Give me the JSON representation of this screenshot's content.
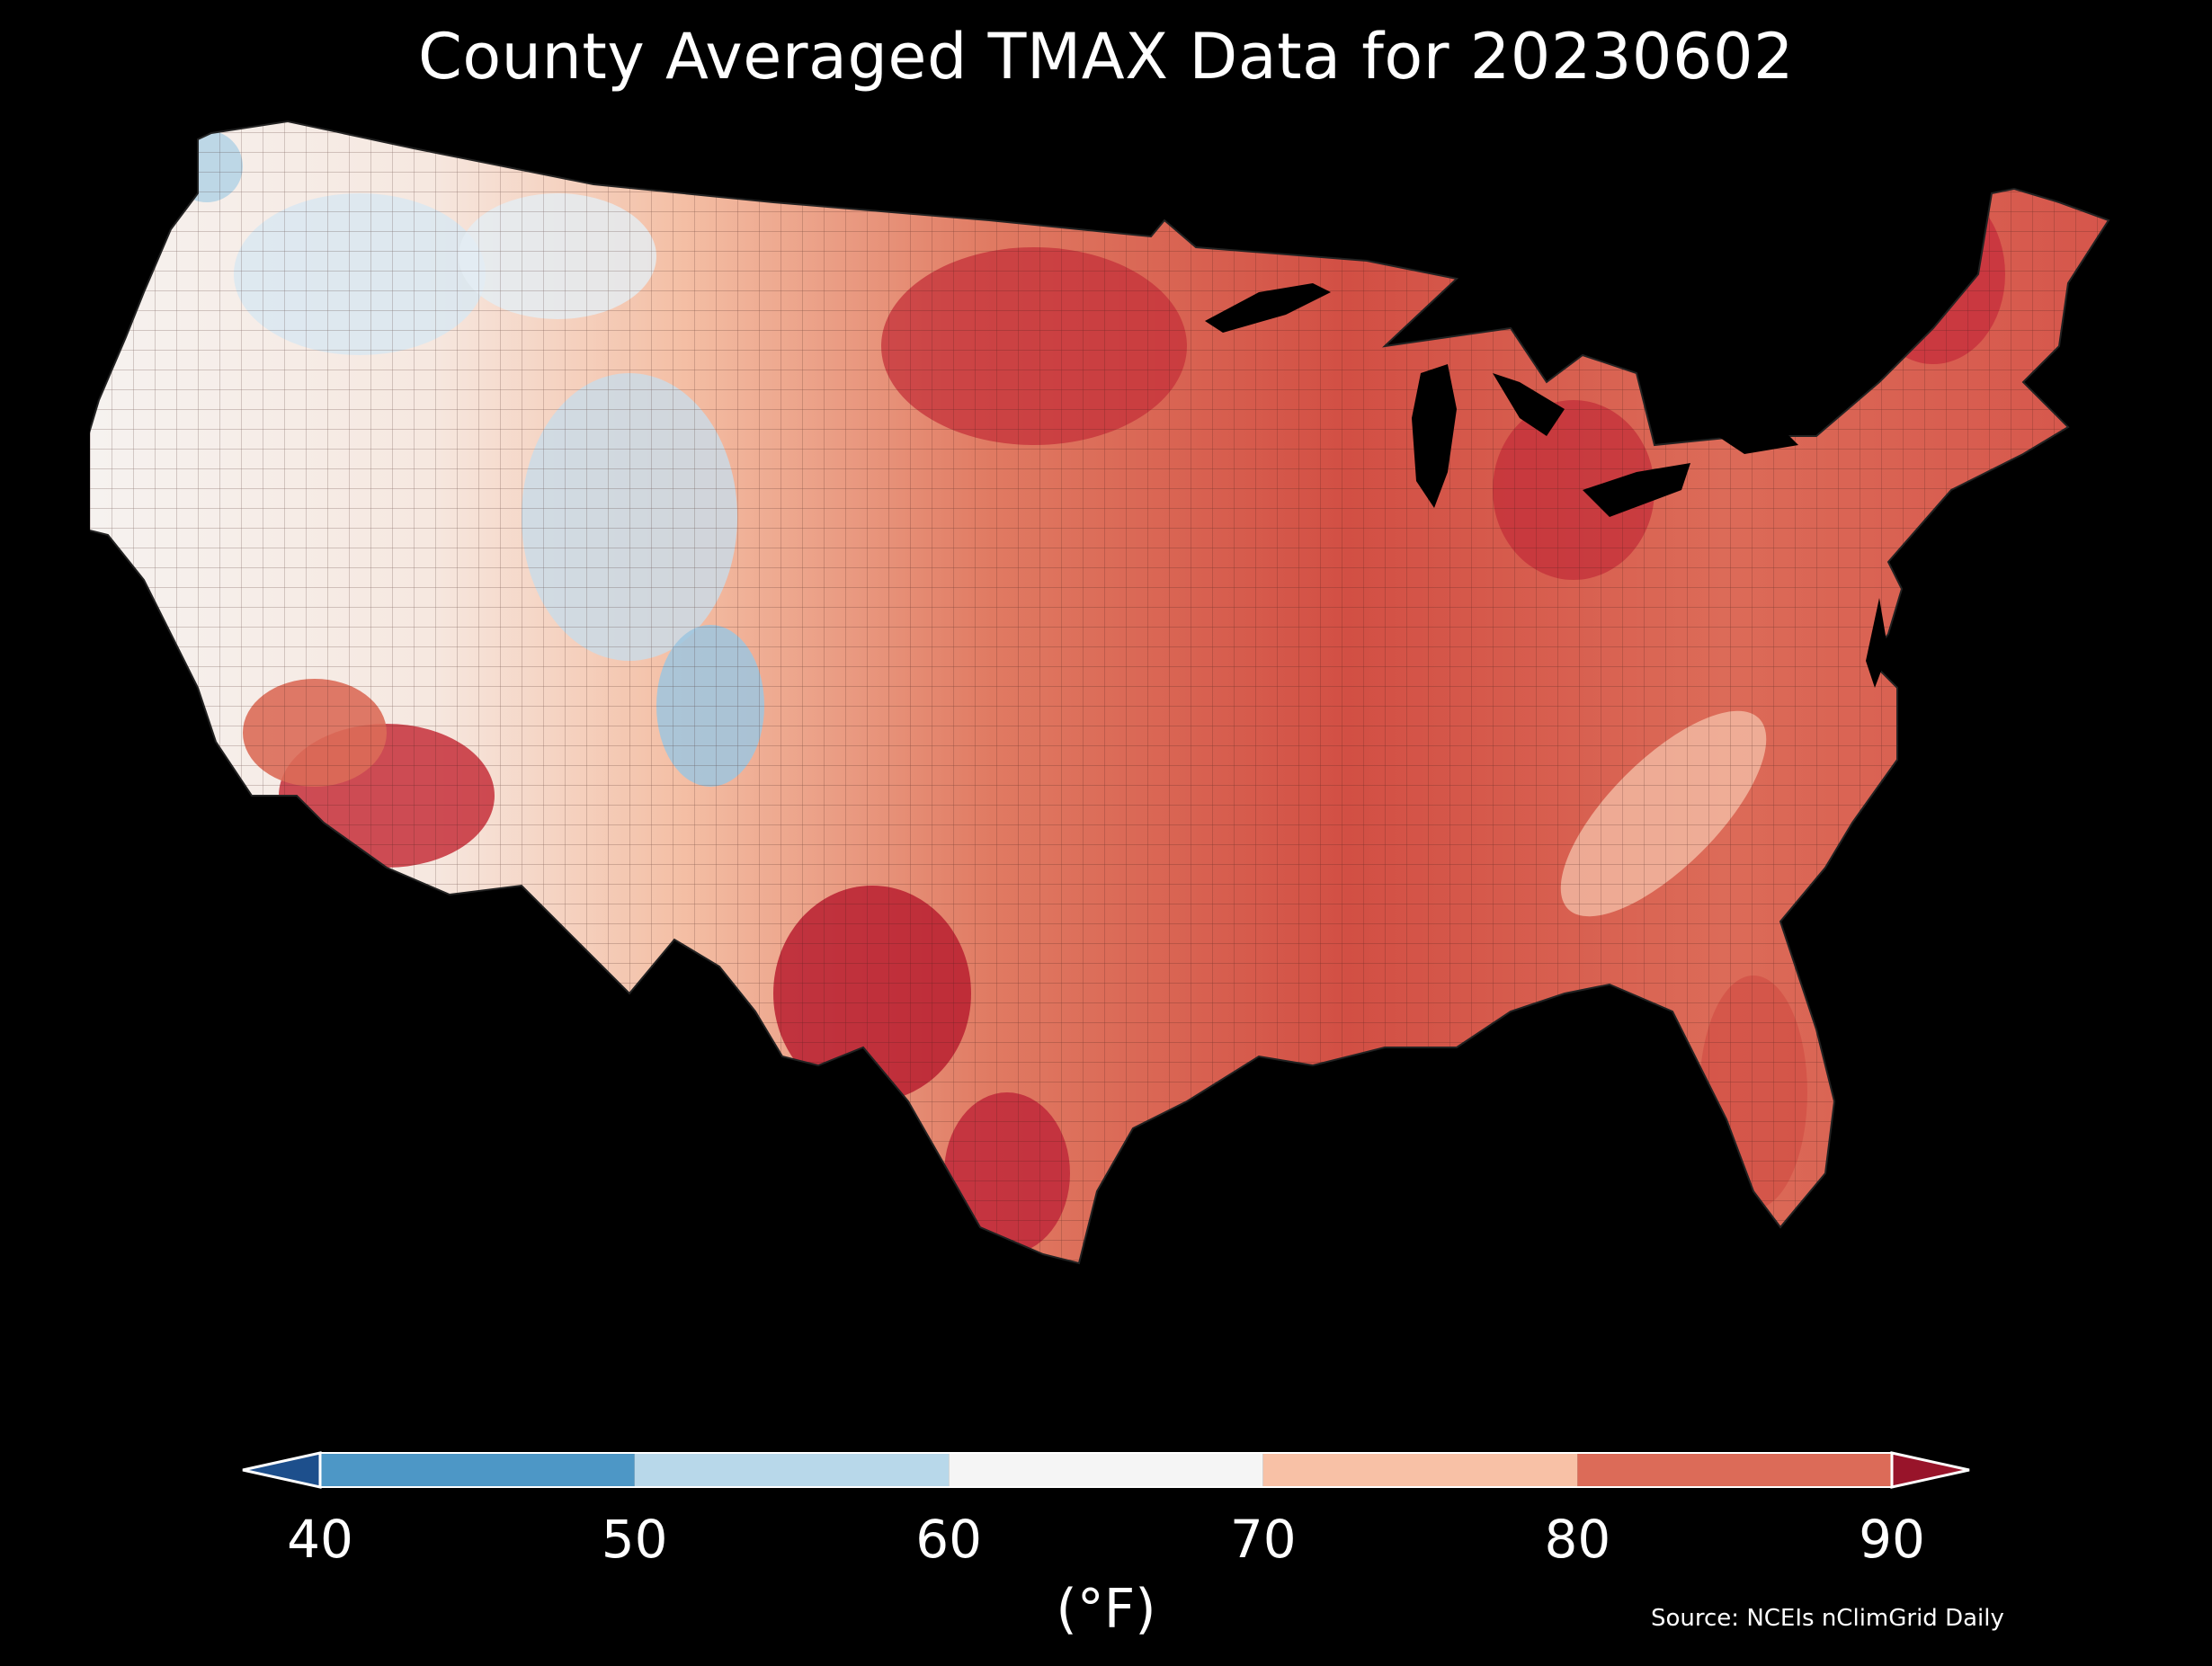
{
  "title": "County Averaged TMAX Data for 20230602",
  "colorbar": {
    "ticks": [
      "40",
      "50",
      "60",
      "70",
      "80",
      "90"
    ],
    "unit": "(°F)",
    "bins": [
      {
        "range": "<40",
        "color": "#1d4f8c"
      },
      {
        "range": "40-50",
        "color": "#4d97c6"
      },
      {
        "range": "50-60",
        "color": "#b8d8ea"
      },
      {
        "range": "60-70",
        "color": "#f5f5f5"
      },
      {
        "range": "70-80",
        "color": "#f8c1a6"
      },
      {
        "range": "80-90",
        "color": "#dc6b58"
      },
      {
        "range": ">90",
        "color": "#98142a"
      }
    ]
  },
  "source": "Source: NCEIs nClimGrid Daily",
  "map": {
    "region": "Contiguous United States counties",
    "variable": "TMAX",
    "date": "20230602"
  }
}
